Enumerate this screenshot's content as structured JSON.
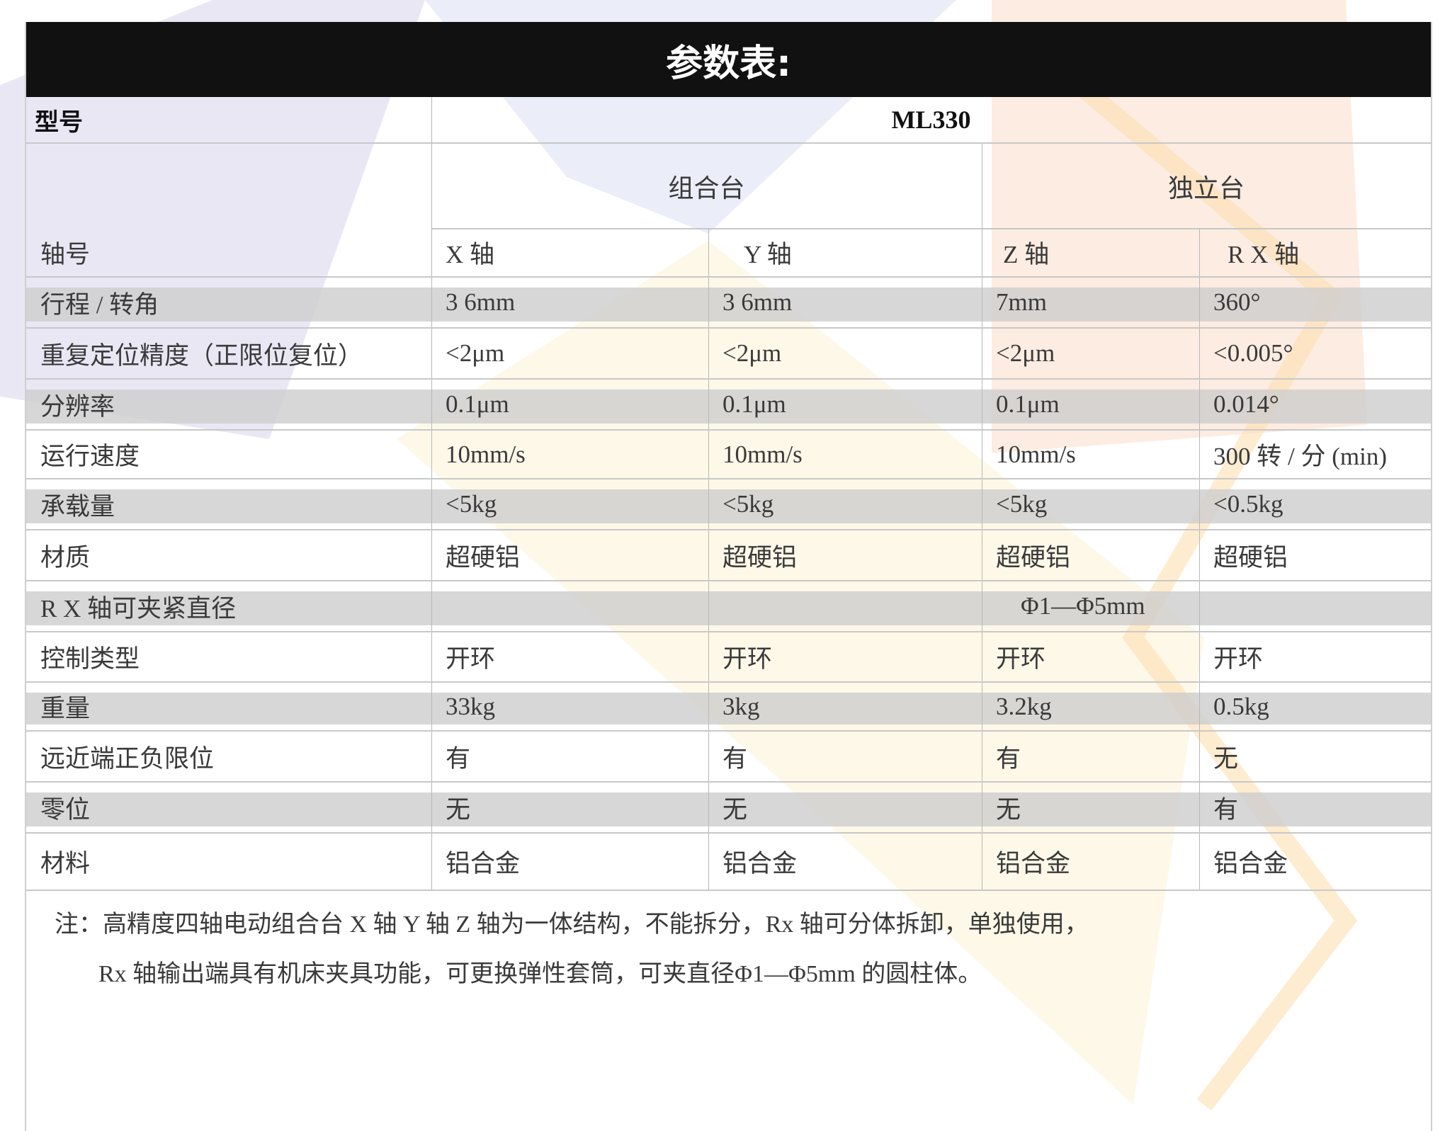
{
  "title": "参数表:",
  "model_label": "型号",
  "model_value": "ML330",
  "groups": [
    "组合台",
    "独立台"
  ],
  "axis_header": {
    "label": "轴号",
    "cols": [
      "X 轴",
      "Y 轴",
      "Z 轴",
      "R X 轴"
    ]
  },
  "rows": [
    {
      "label": "行程 / 转角",
      "values": [
        "3 6mm",
        "3 6mm",
        "7mm",
        "360°"
      ],
      "shaded": true
    },
    {
      "label": "重复定位精度（正限位复位）",
      "values": [
        "<2μm",
        "<2μm",
        "<2μm",
        "<0.005°"
      ],
      "shaded": false
    },
    {
      "label": "分辨率",
      "values": [
        "0.1μm",
        "0.1μm",
        "0.1μm",
        "0.014°"
      ],
      "shaded": true
    },
    {
      "label": "运行速度",
      "values": [
        "10mm/s",
        "10mm/s",
        "10mm/s",
        "300 转 / 分 (min)"
      ],
      "shaded": false
    },
    {
      "label": "承载量",
      "values": [
        "<5kg",
        "<5kg",
        "<5kg",
        "<0.5kg"
      ],
      "shaded": true
    },
    {
      "label": "材质",
      "values": [
        "超硬铝",
        "超硬铝",
        "超硬铝",
        "超硬铝"
      ],
      "shaded": false
    },
    {
      "label": "R X 轴可夹紧直径",
      "values": [
        "",
        "",
        "Φ1—Φ5mm",
        ""
      ],
      "shaded": true
    },
    {
      "label": "控制类型",
      "values": [
        "开环",
        "开环",
        "开环",
        "开环"
      ],
      "shaded": false
    },
    {
      "label": "重量",
      "values": [
        "33kg",
        "3kg",
        "3.2kg",
        "0.5kg"
      ],
      "shaded": true
    },
    {
      "label": "远近端正负限位",
      "values": [
        "有",
        "有",
        "有",
        "无"
      ],
      "shaded": false
    },
    {
      "label": "零位",
      "values": [
        "无",
        "无",
        "无",
        "有"
      ],
      "shaded": true
    },
    {
      "label": "材料",
      "values": [
        "铝合金",
        "铝合金",
        "铝合金",
        "铝合金"
      ],
      "shaded": false
    }
  ],
  "note": {
    "line1": "注：高精度四轴电动组合台 X 轴 Y 轴 Z 轴为一体结构，不能拆分，Rx 轴可分体拆卸，单独使用，",
    "line2": "Rx 轴输出端具有机床夹具功能，可更换弹性套筒，可夹直径Φ1—Φ5mm 的圆柱体。"
  },
  "colors": {
    "header_bg": "#111111",
    "band": "#d4d4d4",
    "watermark_purple": "#b9b0d8",
    "watermark_orange": "#f6b98d",
    "watermark_yellow": "#fbe3a6"
  }
}
